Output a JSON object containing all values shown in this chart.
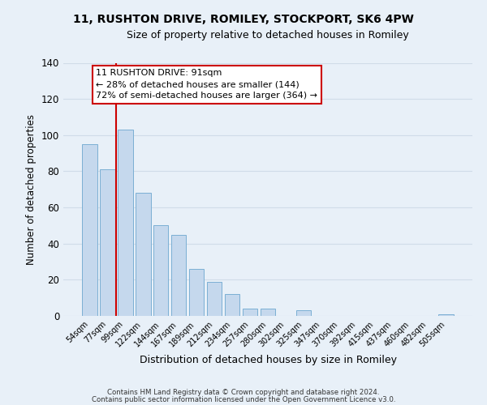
{
  "title": "11, RUSHTON DRIVE, ROMILEY, STOCKPORT, SK6 4PW",
  "subtitle": "Size of property relative to detached houses in Romiley",
  "xlabel": "Distribution of detached houses by size in Romiley",
  "ylabel": "Number of detached properties",
  "bar_labels": [
    "54sqm",
    "77sqm",
    "99sqm",
    "122sqm",
    "144sqm",
    "167sqm",
    "189sqm",
    "212sqm",
    "234sqm",
    "257sqm",
    "280sqm",
    "302sqm",
    "325sqm",
    "347sqm",
    "370sqm",
    "392sqm",
    "415sqm",
    "437sqm",
    "460sqm",
    "482sqm",
    "505sqm"
  ],
  "bar_values": [
    95,
    81,
    103,
    68,
    50,
    45,
    26,
    19,
    12,
    4,
    4,
    0,
    3,
    0,
    0,
    0,
    0,
    0,
    0,
    0,
    1
  ],
  "bar_color": "#c5d8ed",
  "bar_edge_color": "#7bafd4",
  "ylim": [
    0,
    140
  ],
  "yticks": [
    0,
    20,
    40,
    60,
    80,
    100,
    120,
    140
  ],
  "annotation_title": "11 RUSHTON DRIVE: 91sqm",
  "annotation_line1": "← 28% of detached houses are smaller (144)",
  "annotation_line2": "72% of semi-detached houses are larger (364) →",
  "annotation_box_color": "#ffffff",
  "annotation_box_edge_color": "#cc0000",
  "property_line_color": "#cc0000",
  "grid_color": "#d0dce8",
  "background_color": "#e8f0f8",
  "footer_line1": "Contains HM Land Registry data © Crown copyright and database right 2024.",
  "footer_line2": "Contains public sector information licensed under the Open Government Licence v3.0."
}
